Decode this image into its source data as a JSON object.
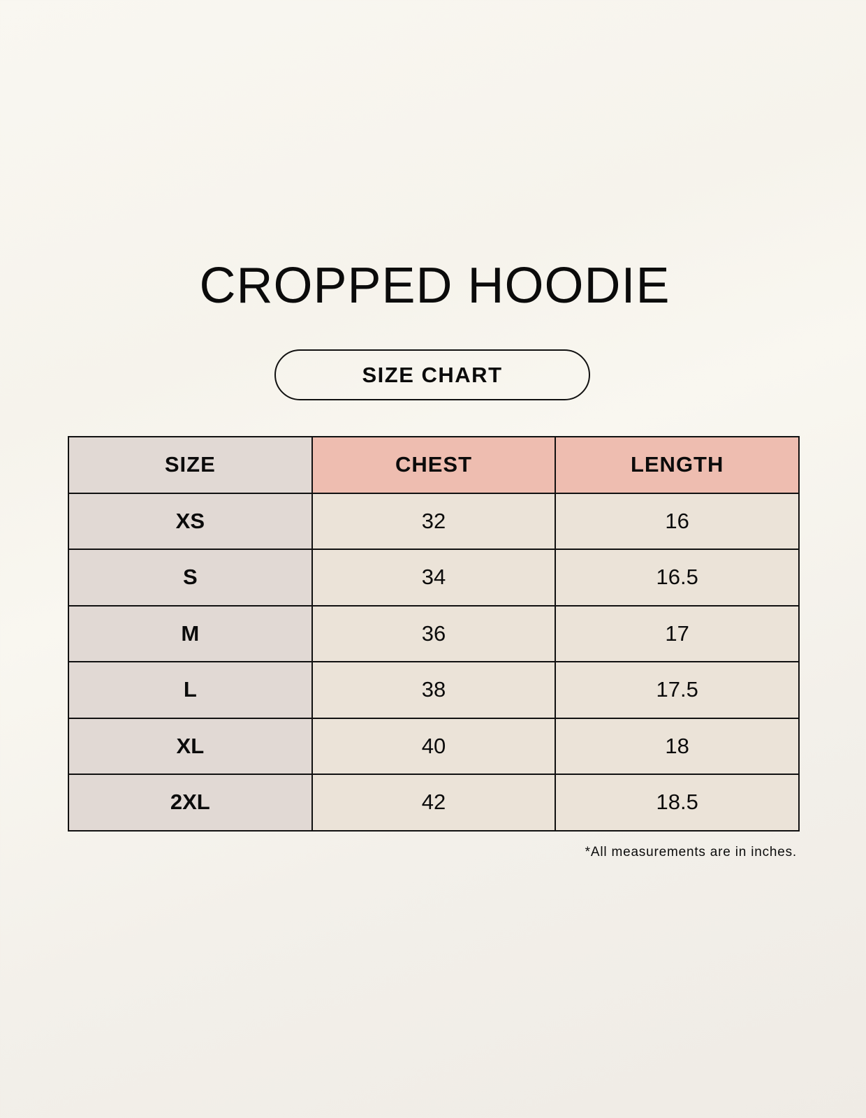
{
  "title": "CROPPED HOODIE",
  "subtitle": "SIZE CHART",
  "table": {
    "headers": [
      "SIZE",
      "CHEST",
      "LENGTH"
    ],
    "rows": [
      [
        "XS",
        "32",
        "16"
      ],
      [
        "S",
        "34",
        "16.5"
      ],
      [
        "M",
        "36",
        "17"
      ],
      [
        "L",
        "38",
        "17.5"
      ],
      [
        "XL",
        "40",
        "18"
      ],
      [
        "2XL",
        "42",
        "18.5"
      ]
    ]
  },
  "footnote": "*All measurements are in inches.",
  "colors": {
    "size_column": "#e1d9d4",
    "header_highlight": "#eebdb0",
    "value_cells": "#ebe3d8"
  }
}
